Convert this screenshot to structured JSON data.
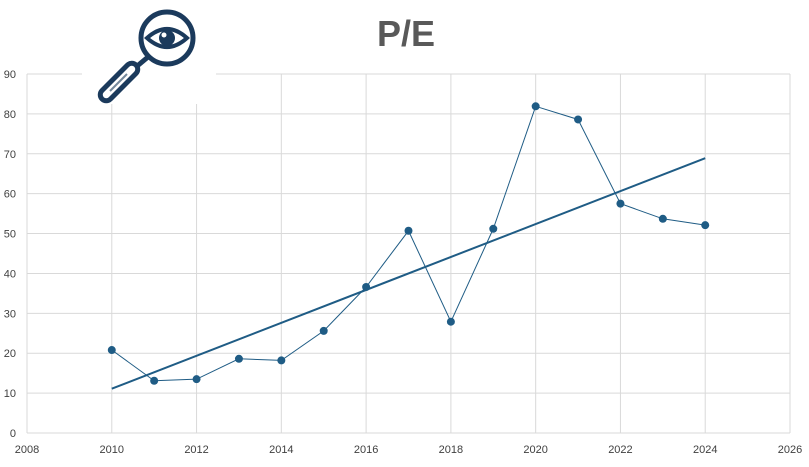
{
  "chart_data": {
    "type": "scatter",
    "title": "P/E",
    "xlabel": "",
    "ylabel": "",
    "xlim": [
      2008,
      2026
    ],
    "ylim": [
      0,
      90
    ],
    "xticks": [
      2008,
      2010,
      2012,
      2014,
      2016,
      2018,
      2020,
      2022,
      2024,
      2026
    ],
    "yticks": [
      0,
      10,
      20,
      30,
      40,
      50,
      60,
      70,
      80,
      90
    ],
    "grid": true,
    "legend": "none",
    "series": [
      {
        "x": [
          2010,
          2011,
          2012,
          2013,
          2014,
          2015,
          2016,
          2017,
          2018,
          2019,
          2020,
          2021,
          2022,
          2023,
          2024
        ],
        "y": [
          20.8,
          13.1,
          13.5,
          18.6,
          18.2,
          25.6,
          36.6,
          50.7,
          27.9,
          51.2,
          81.9,
          78.6,
          57.5,
          53.7,
          52.1
        ]
      }
    ],
    "trendline": {
      "type": "linear",
      "x": [
        2010,
        2024
      ],
      "y": [
        11.1,
        68.9
      ]
    },
    "colors": {
      "series": "#1f5c85",
      "trendline": "#1f5c85",
      "icon": "#1b3a5c",
      "grid": "#d9d9d9"
    }
  },
  "icon": "magnifying-glass-eye-icon"
}
